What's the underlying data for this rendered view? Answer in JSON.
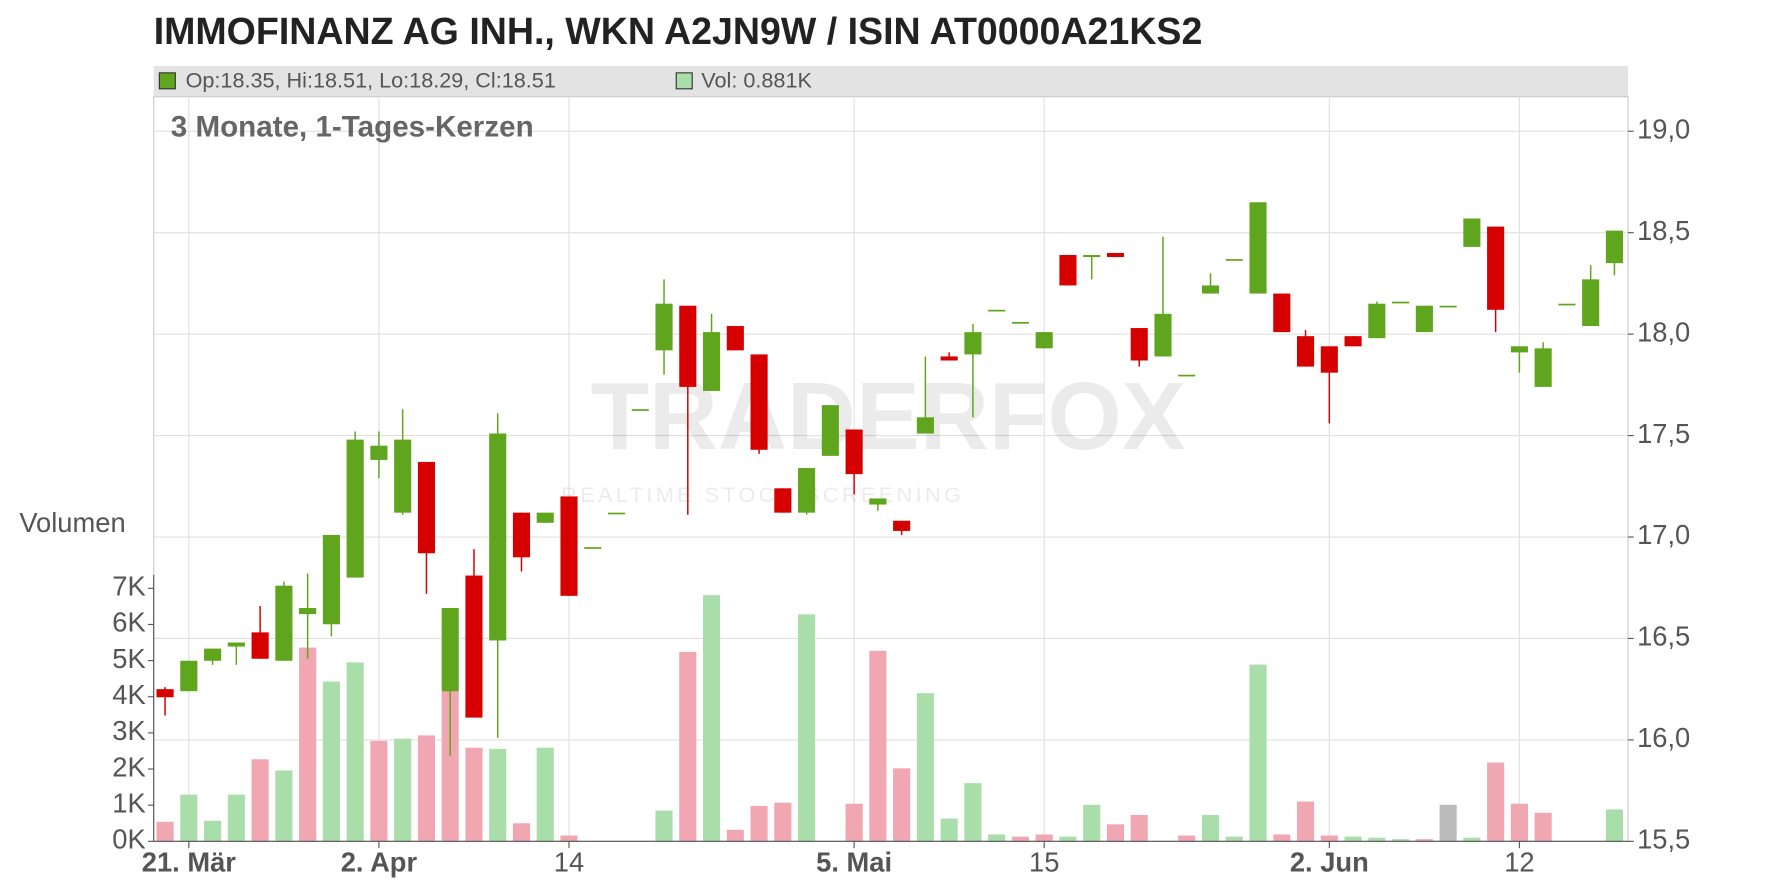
{
  "chart_data": {
    "type": "candlestick",
    "title": "IMMOFINANZ AG INH., WKN A2JN9W / ISIN AT0000A21KS2",
    "header_ohlc": "Op:18.35, Hi:18.51, Lo:18.29, Cl:18.51",
    "header_volume": "Vol: 0.881K",
    "subtitle": "3 Monate, 1-Tages-Kerzen",
    "volume_label": "Volumen",
    "watermark": "TRADERFOX",
    "watermark_tagline": "REALTIME STOCK SCREENING",
    "categories": [
      null,
      "21. Mär",
      null,
      null,
      null,
      null,
      null,
      null,
      null,
      "2. Apr",
      null,
      null,
      null,
      null,
      null,
      null,
      null,
      "14",
      null,
      null,
      null,
      null,
      null,
      null,
      null,
      null,
      null,
      null,
      null,
      "5. Mai",
      null,
      null,
      null,
      null,
      null,
      null,
      null,
      "15",
      null,
      null,
      null,
      null,
      null,
      null,
      null,
      null,
      null,
      null,
      null,
      "2. Jun",
      null,
      null,
      null,
      null,
      null,
      null,
      null,
      "12",
      null,
      null,
      null,
      null
    ],
    "open": [
      16.25,
      16.24,
      16.39,
      16.46,
      16.53,
      16.39,
      16.62,
      16.57,
      16.8,
      17.38,
      17.12,
      17.37,
      16.24,
      16.81,
      16.49,
      17.12,
      17.07,
      17.2,
      16.95,
      17.12,
      17.63,
      17.92,
      18.14,
      17.72,
      18.04,
      17.9,
      17.24,
      17.12,
      17.4,
      17.53,
      17.16,
      17.08,
      17.51,
      17.89,
      17.9,
      18.12,
      18.06,
      17.93,
      18.39,
      18.38,
      18.4,
      18.03,
      17.89,
      17.8,
      18.2,
      18.37,
      18.2,
      18.2,
      17.99,
      17.94,
      17.99,
      17.98,
      18.16,
      18.01,
      18.14,
      18.43,
      18.53,
      17.91,
      17.74,
      18.15,
      18.04,
      18.35
    ],
    "high": [
      16.26,
      16.39,
      16.45,
      16.48,
      16.66,
      16.78,
      16.82,
      17.01,
      17.52,
      17.52,
      17.63,
      17.37,
      16.65,
      16.94,
      17.61,
      17.12,
      17.12,
      17.2,
      16.95,
      17.12,
      17.63,
      18.27,
      18.14,
      18.1,
      18.04,
      17.9,
      17.24,
      17.34,
      17.65,
      17.53,
      17.19,
      17.08,
      17.89,
      17.91,
      18.05,
      18.12,
      18.06,
      18.01,
      18.39,
      18.39,
      18.4,
      18.03,
      18.48,
      17.8,
      18.3,
      18.37,
      18.65,
      18.2,
      18.02,
      17.94,
      17.99,
      18.16,
      18.16,
      18.14,
      18.14,
      18.57,
      18.53,
      17.94,
      17.96,
      18.15,
      18.34,
      18.51
    ],
    "low": [
      16.12,
      16.24,
      16.37,
      16.37,
      16.4,
      16.39,
      16.4,
      16.51,
      16.8,
      17.29,
      17.11,
      16.72,
      15.92,
      16.11,
      16.01,
      16.83,
      17.07,
      16.71,
      16.95,
      17.12,
      17.63,
      17.8,
      17.11,
      17.72,
      17.92,
      17.41,
      17.12,
      17.11,
      17.4,
      17.21,
      17.13,
      17.01,
      17.51,
      17.87,
      17.59,
      18.12,
      18.06,
      17.93,
      18.24,
      18.27,
      18.38,
      17.84,
      17.89,
      17.8,
      18.2,
      18.37,
      18.2,
      18.01,
      17.84,
      17.56,
      17.94,
      17.98,
      18.16,
      18.01,
      18.14,
      18.43,
      18.01,
      17.81,
      17.74,
      18.15,
      18.04,
      18.29
    ],
    "close": [
      16.21,
      16.39,
      16.45,
      16.48,
      16.4,
      16.76,
      16.65,
      17.01,
      17.48,
      17.45,
      17.48,
      16.92,
      16.65,
      16.11,
      17.51,
      16.9,
      17.12,
      16.71,
      16.95,
      17.12,
      17.63,
      18.15,
      17.74,
      18.01,
      17.92,
      17.43,
      17.12,
      17.34,
      17.65,
      17.31,
      17.19,
      17.03,
      17.59,
      17.87,
      18.01,
      18.12,
      18.06,
      18.01,
      18.24,
      18.39,
      18.38,
      17.87,
      18.1,
      17.8,
      18.24,
      18.37,
      18.65,
      18.01,
      17.84,
      17.81,
      17.94,
      18.15,
      18.16,
      18.14,
      18.14,
      18.57,
      18.12,
      17.94,
      17.93,
      18.15,
      18.27,
      18.51
    ],
    "volume": [
      540,
      1290,
      570,
      1290,
      2270,
      1960,
      5360,
      4420,
      4950,
      2780,
      2840,
      2930,
      4160,
      2590,
      2560,
      500,
      2590,
      160,
      0,
      0,
      0,
      850,
      5240,
      6810,
      320,
      980,
      1070,
      6280,
      0,
      1040,
      5270,
      2020,
      4100,
      630,
      1610,
      190,
      130,
      190,
      130,
      1010,
      470,
      730,
      0,
      160,
      730,
      130,
      4890,
      190,
      1100,
      160,
      130,
      100,
      60,
      60,
      1010,
      100,
      2180,
      1040,
      790,
      0,
      0,
      881
    ],
    "ylim": [
      15.5,
      19.17
    ],
    "yticks": [
      {
        "value": 15.5,
        "label": "15,5"
      },
      {
        "value": 16,
        "label": "16,0"
      },
      {
        "value": 16.5,
        "label": "16,5"
      },
      {
        "value": 17,
        "label": "17,0"
      },
      {
        "value": 17.5,
        "label": "17,5"
      },
      {
        "value": 18,
        "label": "18,0"
      },
      {
        "value": 18.5,
        "label": "18,5"
      },
      {
        "value": 19,
        "label": "19,0"
      }
    ],
    "y2lim": [
      0,
      20600
    ],
    "y2ticks": [
      {
        "value": 0,
        "label": "0K"
      },
      {
        "value": 1000,
        "label": "1K"
      },
      {
        "value": 2000,
        "label": "2K"
      },
      {
        "value": 3000,
        "label": "3K"
      },
      {
        "value": 4000,
        "label": "4K"
      },
      {
        "value": 5000,
        "label": "5K"
      },
      {
        "value": 6000,
        "label": "6K"
      },
      {
        "value": 7000,
        "label": "7K"
      }
    ],
    "up_color": "#5fa51d",
    "down_color": "#d60000",
    "volume_up_color": "#a9dda9",
    "volume_down_color": "#f0a7b1",
    "volume_flat_color": "#bbbbbb",
    "grid": true
  }
}
